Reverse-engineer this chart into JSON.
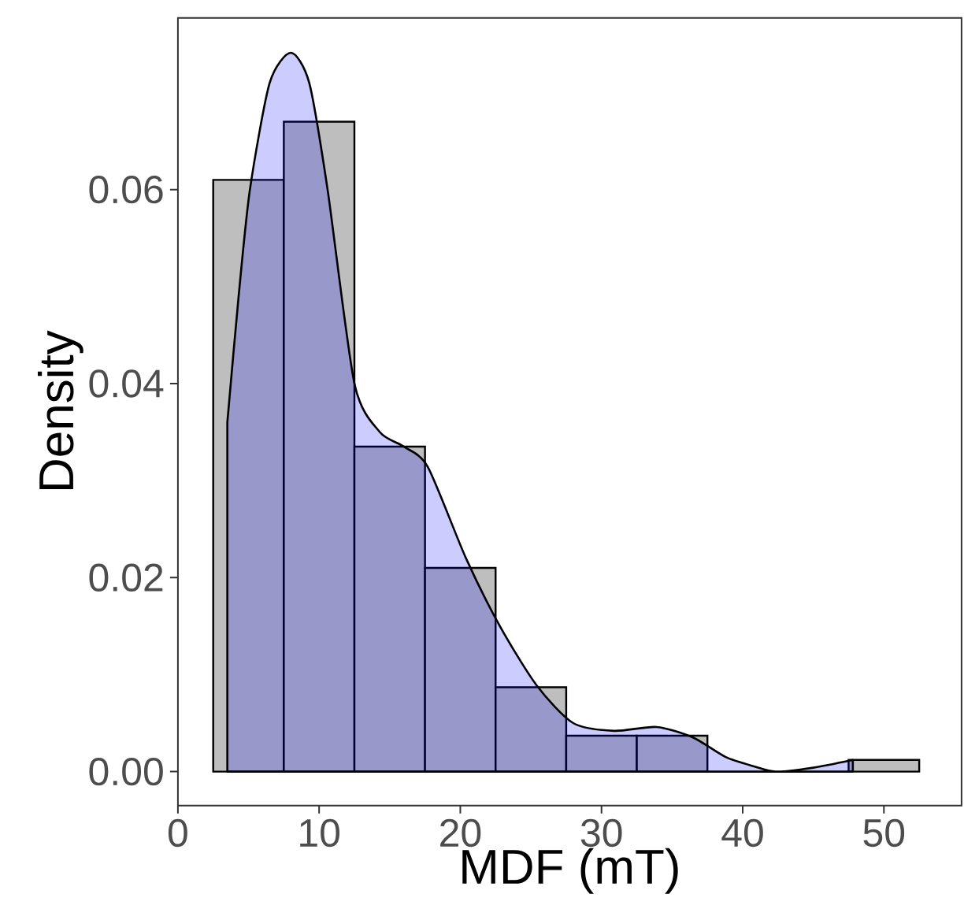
{
  "chart_data": {
    "type": "histogram",
    "xlabel": "MDF (mT)",
    "ylabel": "Density",
    "bins": [
      2.5,
      7.5,
      12.5,
      17.5,
      22.5,
      27.5,
      32.5,
      37.5,
      42.5,
      47.5,
      52.5
    ],
    "values": [
      0.061,
      0.067,
      0.0335,
      0.021,
      0.0087,
      0.0037,
      0.0037,
      0,
      0,
      0.0012
    ],
    "color": "#bebebe",
    "series": [
      {
        "type": "area",
        "color": "#0000ff",
        "x": [
          3.5,
          4.3,
          5.1,
          6.5,
          8.0,
          9.3,
          10.6,
          12.5,
          14.3,
          16.0,
          17.7,
          20.4,
          22.8,
          25.4,
          28.0,
          30.9,
          33.9,
          36.5,
          38.8,
          40.9,
          42.3,
          45.0,
          47.8
        ],
        "values": [
          0.036,
          0.049,
          0.06,
          0.071,
          0.0741,
          0.071,
          0.06,
          0.04,
          0.035,
          0.0335,
          0.0314,
          0.022,
          0.015,
          0.0089,
          0.005,
          0.0042,
          0.0046,
          0.0035,
          0.0015,
          0.0005,
          0.0,
          0.0004,
          0.0012
        ]
      }
    ],
    "xlim": [
      0,
      55.5
    ],
    "ylim": [
      -0.0035,
      0.0777
    ],
    "xticks": [
      0,
      10,
      20,
      30,
      40,
      50
    ],
    "yticks": [
      {
        "value": 0,
        "label": "0.00"
      },
      {
        "value": 0.02,
        "label": "0.02"
      },
      {
        "value": 0.04,
        "label": "0.04"
      },
      {
        "value": 0.06,
        "label": "0.06"
      }
    ],
    "grid": false
  }
}
